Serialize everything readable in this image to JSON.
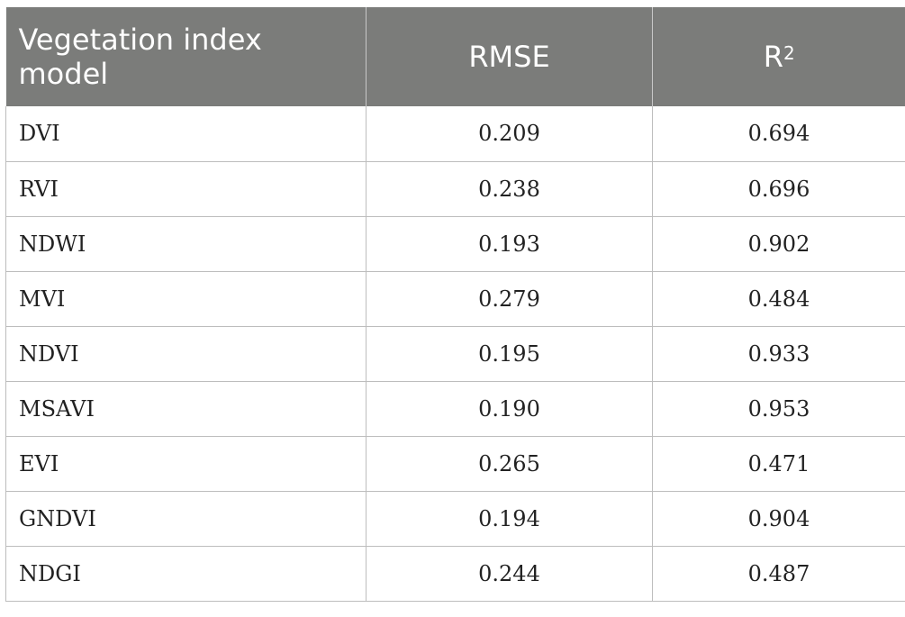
{
  "table": {
    "headers": {
      "model": "Vegetation index model",
      "rmse": "RMSE",
      "r2_base": "R",
      "r2_sup": "2"
    },
    "rows": [
      {
        "model": "DVI",
        "rmse": "0.209",
        "r2": "0.694"
      },
      {
        "model": "RVI",
        "rmse": "0.238",
        "r2": "0.696"
      },
      {
        "model": "NDWI",
        "rmse": "0.193",
        "r2": "0.902"
      },
      {
        "model": "MVI",
        "rmse": "0.279",
        "r2": "0.484"
      },
      {
        "model": "NDVI",
        "rmse": "0.195",
        "r2": "0.933"
      },
      {
        "model": "MSAVI",
        "rmse": "0.190",
        "r2": "0.953"
      },
      {
        "model": "EVI",
        "rmse": "0.265",
        "r2": "0.471"
      },
      {
        "model": "GNDVI",
        "rmse": "0.194",
        "r2": "0.904"
      },
      {
        "model": "NDGI",
        "rmse": "0.244",
        "r2": "0.487"
      }
    ]
  },
  "colors": {
    "header_bg": "#7b7c7a",
    "header_text": "#ffffff",
    "grid": "#bdbdbd"
  }
}
